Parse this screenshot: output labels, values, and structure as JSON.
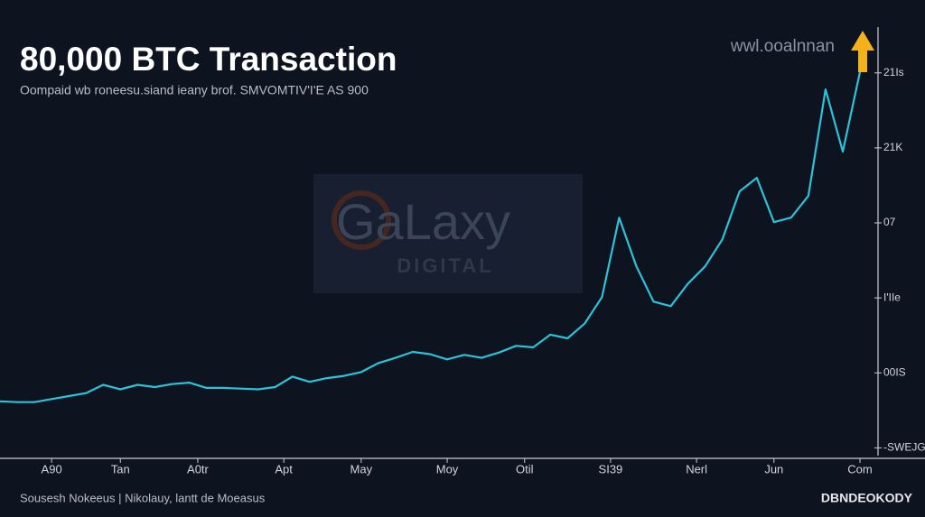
{
  "chart_data": {
    "type": "line",
    "title": "80,000 BTC Transaction",
    "subtitle": "Oompaid wb roneesu.siand ieany brof. SMVOMTIV'I'E AS 900",
    "annotation": "wwl.ooalnnan",
    "watermark": [
      "GaLaxy",
      "DIGITAL"
    ],
    "source": "Sousesh Nokeeus | Nikolauy, lantt de Moeasus",
    "brand": "DBNDEOKODY",
    "x": [
      0,
      2,
      4,
      6,
      8,
      10,
      12,
      14,
      16,
      18,
      20,
      22,
      24,
      26,
      28,
      30,
      32,
      34,
      36,
      38,
      40,
      42,
      44,
      46,
      48,
      50,
      52,
      54,
      56,
      58,
      60,
      62,
      64,
      66,
      68,
      70,
      72,
      74,
      76,
      78,
      80,
      82,
      84,
      86,
      88,
      90,
      92,
      94,
      96,
      98,
      100
    ],
    "series": [
      {
        "name": "BTC",
        "color": "#2cc3d9",
        "values": [
          0.62,
          0.61,
          0.61,
          0.65,
          0.69,
          0.73,
          0.84,
          0.78,
          0.84,
          0.81,
          0.85,
          0.87,
          0.8,
          0.8,
          0.79,
          0.78,
          0.81,
          0.95,
          0.88,
          0.93,
          0.96,
          1.01,
          1.13,
          1.2,
          1.28,
          1.25,
          1.18,
          1.24,
          1.2,
          1.27,
          1.36,
          1.34,
          1.51,
          1.46,
          1.66,
          2.01,
          3.07,
          2.42,
          1.95,
          1.89,
          2.19,
          2.42,
          2.78,
          3.42,
          3.6,
          3.01,
          3.07,
          3.36,
          4.78,
          3.95,
          5.01
        ]
      }
    ],
    "xlim": [
      0,
      100
    ],
    "xticks": [
      {
        "value": 6,
        "label": "A90"
      },
      {
        "value": 14,
        "label": "Tan"
      },
      {
        "value": 23,
        "label": "A0tr"
      },
      {
        "value": 33,
        "label": "Apt"
      },
      {
        "value": 42,
        "label": "May"
      },
      {
        "value": 52,
        "label": "Moy"
      },
      {
        "value": 61,
        "label": "Otil"
      },
      {
        "value": 71,
        "label": "SI39"
      },
      {
        "value": 81,
        "label": "Nerl"
      },
      {
        "value": 90,
        "label": "Jun"
      },
      {
        "value": 100,
        "label": "Com"
      }
    ],
    "ylim": [
      -0.14,
      5.25
    ],
    "yticks": [
      {
        "value": 0,
        "label": "-SWEJG"
      },
      {
        "value": 1,
        "label": "00IS"
      },
      {
        "value": 2,
        "label": "I'IIe"
      },
      {
        "value": 3,
        "label": "07"
      },
      {
        "value": 4,
        "label": "21K"
      },
      {
        "value": 5,
        "label": "21Is"
      }
    ],
    "y_axis_side": "right"
  }
}
